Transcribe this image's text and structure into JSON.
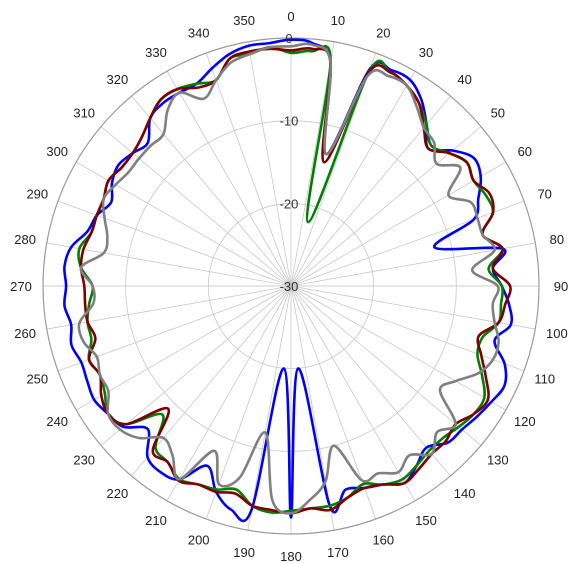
{
  "chart_data": {
    "type": "polar-line",
    "grid": true,
    "radial_axis": {
      "range": [
        -30,
        0
      ],
      "ticks": [
        0,
        -10,
        -20,
        -30
      ],
      "tick_labels": [
        "0",
        "-10",
        "-20",
        "-30"
      ]
    },
    "angular_axis": {
      "direction": "clockwise",
      "zero_at": "top",
      "tick_labels": [
        "0",
        "10",
        "20",
        "30",
        "40",
        "50",
        "60",
        "70",
        "80",
        "90",
        "100",
        "110",
        "120",
        "130",
        "140",
        "150",
        "160",
        "170",
        "180",
        "190",
        "200",
        "210",
        "220",
        "230",
        "240",
        "250",
        "260",
        "270",
        "280",
        "290",
        "300",
        "310",
        "320",
        "330",
        "340",
        "350"
      ]
    },
    "angles": [
      0,
      5,
      10,
      15,
      20,
      25,
      30,
      35,
      40,
      45,
      50,
      55,
      60,
      65,
      70,
      75,
      80,
      85,
      90,
      95,
      100,
      105,
      110,
      115,
      120,
      125,
      130,
      135,
      140,
      145,
      150,
      155,
      160,
      165,
      170,
      175,
      180,
      185,
      190,
      195,
      200,
      205,
      210,
      215,
      220,
      225,
      230,
      235,
      240,
      245,
      250,
      255,
      260,
      265,
      270,
      275,
      280,
      285,
      290,
      295,
      300,
      305,
      310,
      315,
      320,
      325,
      330,
      335,
      340,
      345,
      350,
      355
    ],
    "series": [
      {
        "color": "#0000ff",
        "values": [
          -0.2,
          -0.5,
          -2.5,
          -13.5,
          -2,
          -1.2,
          -1.2,
          -2.5,
          -4.5,
          -6.5,
          -4.5,
          -3,
          -3.5,
          -5,
          -6.5,
          -12,
          -4,
          -5.5,
          -4.5,
          -3.5,
          -3,
          -4.5,
          -2.5,
          -1.5,
          -2,
          -2.5,
          -3,
          -3.2,
          -4.5,
          -3.5,
          -2.5,
          -3.5,
          -4,
          -4.5,
          -3,
          -20,
          -2,
          -20,
          -2.5,
          -2,
          -3.5,
          -6,
          -3,
          -2.5,
          -3,
          -5.5,
          -3.5,
          -3,
          -2.5,
          -2.8,
          -3,
          -2.5,
          -3,
          -2.5,
          -2.8,
          -2.5,
          -3,
          -4.5,
          -5,
          -6,
          -5,
          -4.5,
          -5,
          -5.5,
          -3.5,
          -3,
          -3,
          -3,
          -2,
          -1,
          -0.5,
          -0.5
        ]
      },
      {
        "color": "#007f00",
        "values": [
          -1.8,
          -1.5,
          -2.5,
          -22,
          -2.5,
          -1.5,
          -2,
          -3,
          -4.5,
          -6,
          -5,
          -4,
          -4.5,
          -4,
          -4,
          -6,
          -4,
          -6,
          -4.5,
          -4.5,
          -4.5,
          -6,
          -6,
          -4.5,
          -3,
          -3,
          -3.5,
          -4,
          -4,
          -3.5,
          -3,
          -3.5,
          -4.5,
          -3.5,
          -3,
          -3,
          -2.8,
          -2.5,
          -3,
          -4.5,
          -3.8,
          -3.5,
          -3,
          -4,
          -4.5,
          -8,
          -4,
          -3,
          -4,
          -4.5,
          -4,
          -5,
          -5,
          -5.5,
          -6,
          -4.5,
          -4,
          -5,
          -5,
          -5,
          -4.5,
          -5,
          -5,
          -4.5,
          -3.5,
          -2.5,
          -2.5,
          -3,
          -3.5,
          -1.5,
          -1.5,
          -1
        ]
      },
      {
        "color": "#7f0000",
        "values": [
          -1.5,
          -1.2,
          -2.5,
          -14.5,
          -2.5,
          -1.5,
          -2,
          -3,
          -5,
          -6.5,
          -5,
          -4,
          -4.5,
          -3.5,
          -4,
          -6,
          -4,
          -5.5,
          -3.5,
          -4,
          -4.5,
          -6.5,
          -5.5,
          -4,
          -2.5,
          -3,
          -4,
          -3.5,
          -3.5,
          -3,
          -2.5,
          -3.5,
          -4,
          -3.5,
          -2.5,
          -3,
          -2.5,
          -2.8,
          -3,
          -4,
          -3.5,
          -3.5,
          -2.8,
          -4,
          -4,
          -9,
          -4,
          -3,
          -3.5,
          -4.5,
          -4,
          -5.5,
          -5,
          -5,
          -5,
          -4.5,
          -4.5,
          -5,
          -5,
          -5,
          -4.5,
          -5,
          -5,
          -4.5,
          -3.5,
          -2.5,
          -2.5,
          -3.5,
          -3.5,
          -1.5,
          -1.2,
          -1.2
        ]
      },
      {
        "color": "#808080",
        "values": [
          -1,
          -0.7,
          -2.5,
          -13.5,
          -3,
          -2,
          -2,
          -3.5,
          -5,
          -5.5,
          -7,
          -5,
          -8,
          -6,
          -6,
          -6,
          -5,
          -8,
          -5,
          -5.5,
          -5,
          -4,
          -4,
          -5,
          -7,
          -8,
          -4,
          -5,
          -3.5,
          -5,
          -4,
          -5,
          -5,
          -10,
          -6,
          -4,
          -2.5,
          -4,
          -12,
          -6,
          -4.5,
          -8,
          -3,
          -5,
          -6,
          -4,
          -3,
          -3,
          -4.5,
          -4.5,
          -5,
          -4,
          -4,
          -6,
          -6,
          -4.5,
          -7,
          -7,
          -6,
          -5,
          -5.5,
          -6,
          -6,
          -6,
          -6,
          -4,
          -3,
          -5,
          -3.5,
          -2,
          -1.5,
          -1
        ]
      }
    ]
  }
}
